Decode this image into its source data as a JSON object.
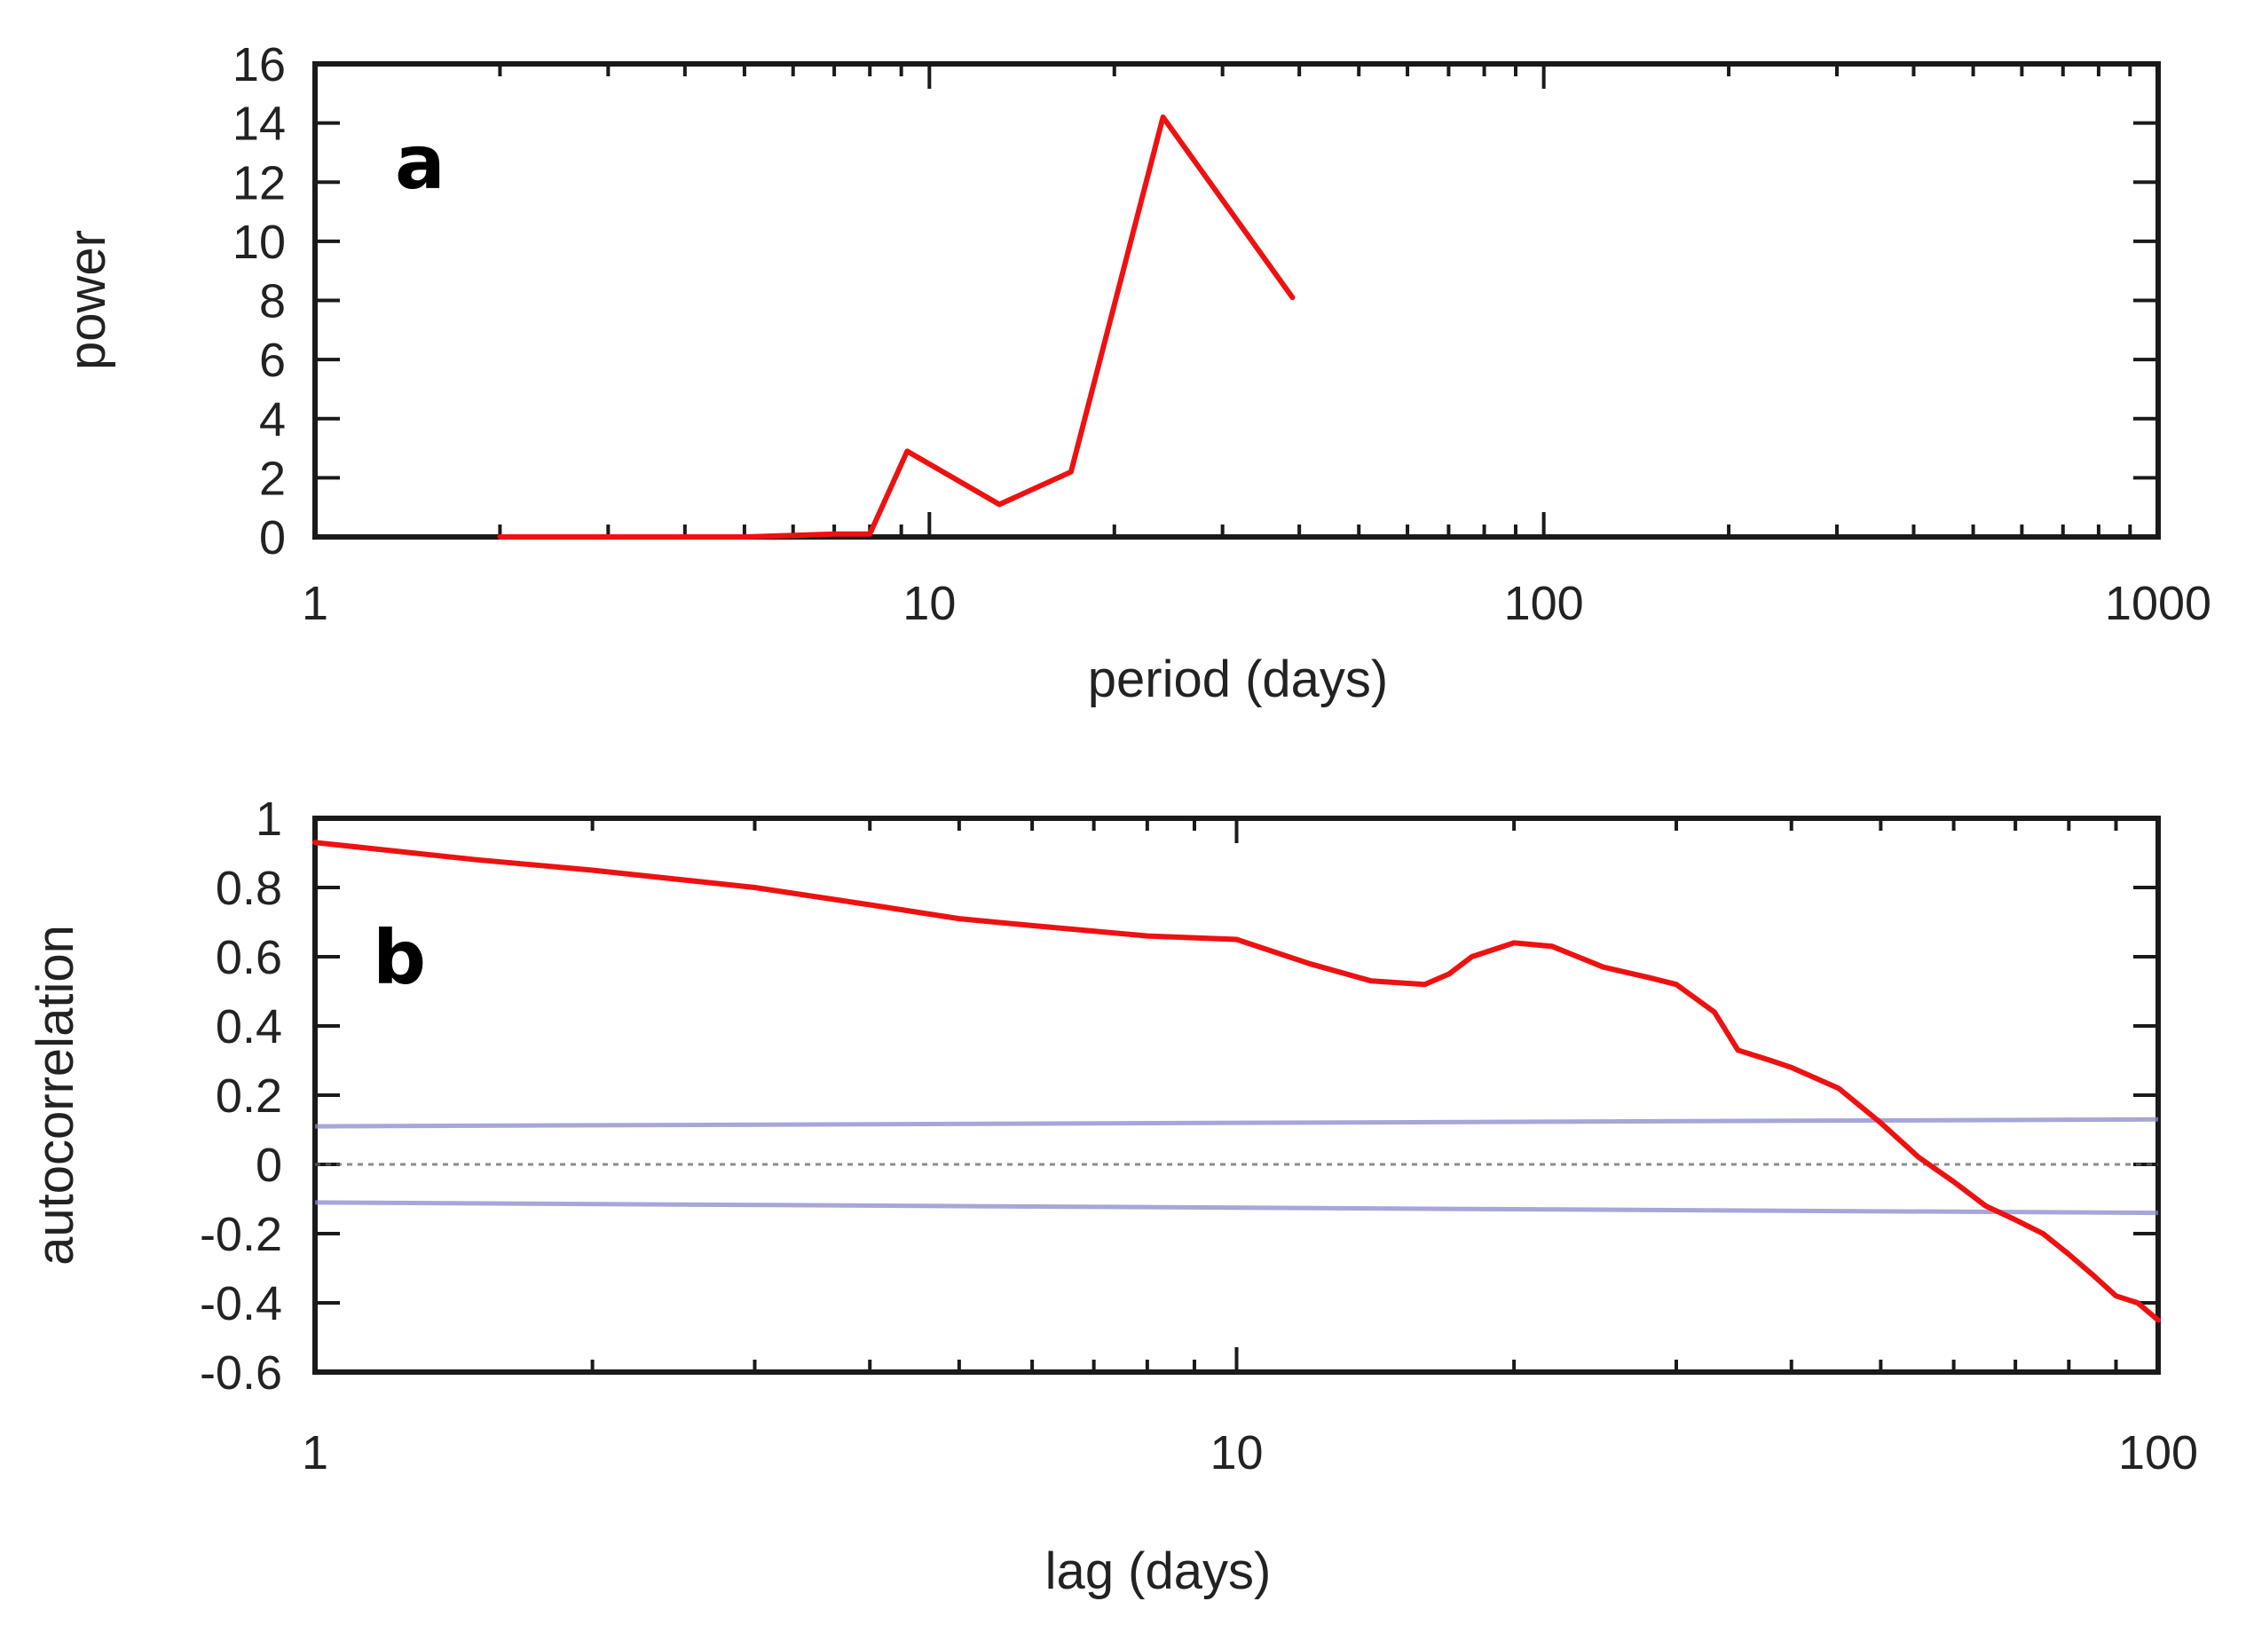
{
  "chart_data": [
    {
      "type": "line",
      "panel_label": "a",
      "xlabel": "period (days)",
      "ylabel": "power",
      "xscale": "log",
      "xlim": [
        1,
        1000
      ],
      "ylim": [
        0,
        16
      ],
      "xticks": [
        1,
        10,
        100,
        1000
      ],
      "xtick_labels": [
        "1",
        "10",
        "100",
        "1000"
      ],
      "yticks": [
        0,
        2,
        4,
        6,
        8,
        10,
        12,
        14,
        16
      ],
      "ytick_labels": [
        "0",
        "2",
        "4",
        "6",
        "8",
        "10",
        "12",
        "14",
        "16"
      ],
      "grid": false,
      "series": [
        {
          "color": "#ee1111",
          "x": [
            2,
            3,
            4,
            5,
            6,
            7,
            8,
            9.2,
            13,
            17,
            24,
            39
          ],
          "y": [
            0,
            0,
            0,
            0,
            0.05,
            0.1,
            0.1,
            2.9,
            1.1,
            2.2,
            14.2,
            8.1
          ]
        }
      ]
    },
    {
      "type": "line",
      "panel_label": "b",
      "xlabel": "lag (days)",
      "ylabel": "autocorrelation",
      "xscale": "log",
      "xlim": [
        1,
        100
      ],
      "ylim": [
        -0.6,
        1
      ],
      "xticks": [
        1,
        10,
        100
      ],
      "xtick_labels": [
        "1",
        "10",
        "100"
      ],
      "yticks": [
        -0.6,
        -0.4,
        -0.2,
        0,
        0.2,
        0.4,
        0.6,
        0.8,
        1
      ],
      "ytick_labels": [
        "-0.6",
        "-0.4",
        "-0.2",
        "0",
        "0.2",
        "0.4",
        "0.6",
        "0.8",
        "1"
      ],
      "grid": false,
      "series": [
        {
          "color": "#ee1111",
          "x": [
            1,
            1.5,
            2,
            3,
            4,
            5,
            6,
            8,
            10,
            12,
            14,
            16,
            17,
            18,
            20,
            22,
            25,
            28,
            30,
            33,
            35,
            38,
            40,
            45,
            50,
            55,
            60,
            65,
            70,
            75,
            80,
            85,
            90,
            95,
            100
          ],
          "y": [
            0.93,
            0.88,
            0.85,
            0.8,
            0.75,
            0.71,
            0.69,
            0.66,
            0.65,
            0.58,
            0.53,
            0.52,
            0.55,
            0.6,
            0.64,
            0.63,
            0.57,
            0.54,
            0.52,
            0.44,
            0.33,
            0.3,
            0.28,
            0.22,
            0.12,
            0.02,
            -0.05,
            -0.12,
            -0.16,
            -0.2,
            -0.26,
            -0.32,
            -0.38,
            -0.4,
            -0.45
          ]
        },
        {
          "color": "#8888cc",
          "x": [
            1,
            100
          ],
          "y": [
            0.11,
            0.13
          ]
        },
        {
          "color": "#8888cc",
          "x": [
            1,
            100
          ],
          "y": [
            -0.11,
            -0.14
          ]
        },
        {
          "color": "#666666",
          "x": [
            1,
            100
          ],
          "y": [
            0,
            0
          ]
        }
      ]
    }
  ]
}
